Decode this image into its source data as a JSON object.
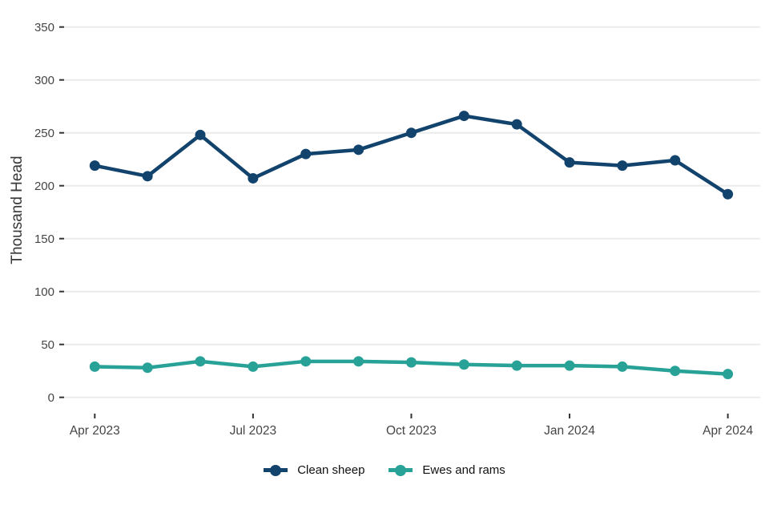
{
  "chart_data": {
    "type": "line",
    "title": "",
    "xlabel": "",
    "ylabel": "Thousand Head",
    "x": [
      "Apr 2023",
      "May 2023",
      "Jun 2023",
      "Jul 2023",
      "Aug 2023",
      "Sep 2023",
      "Oct 2023",
      "Nov 2023",
      "Dec 2023",
      "Jan 2024",
      "Feb 2024",
      "Mar 2024",
      "Apr 2024"
    ],
    "x_tick_labels": [
      "Apr 2023",
      "Jul 2023",
      "Oct 2023",
      "Jan 2024",
      "Apr 2024"
    ],
    "x_tick_indices": [
      0,
      3,
      6,
      9,
      12
    ],
    "y_ticks": [
      0,
      50,
      100,
      150,
      200,
      250,
      300,
      350
    ],
    "ylim": [
      0,
      370
    ],
    "grid": "horizontal-only",
    "legend_position": "bottom-center",
    "series": [
      {
        "name": "Clean sheep",
        "color": "#12436D",
        "values": [
          219,
          209,
          248,
          207,
          230,
          234,
          250,
          266,
          258,
          222,
          219,
          224,
          192
        ]
      },
      {
        "name": "Ewes and rams",
        "color": "#28A197",
        "values": [
          29,
          28,
          34,
          29,
          34,
          34,
          33,
          31,
          30,
          30,
          29,
          25,
          22
        ]
      }
    ],
    "colors": {
      "grid": "#ebebeb",
      "tick_mark": "#333333",
      "tick_text": "#454545",
      "axis_title_text": "#383838",
      "background": "#ffffff"
    }
  }
}
